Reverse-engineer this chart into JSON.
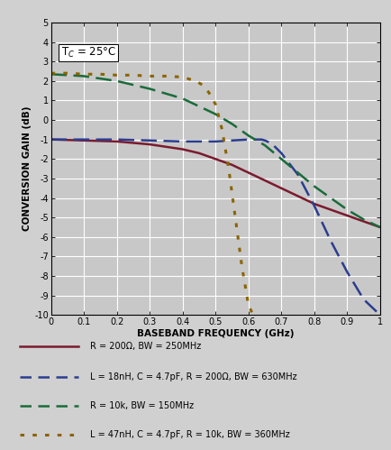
{
  "xlabel": "BASEBAND FREQUENCY (GHz)",
  "ylabel": "CONVERSION GAIN (dB)",
  "xlim": [
    0,
    1.0
  ],
  "ylim": [
    -10,
    5
  ],
  "xticks": [
    0,
    0.1,
    0.2,
    0.3,
    0.4,
    0.5,
    0.6,
    0.7,
    0.8,
    0.9,
    1.0
  ],
  "yticks": [
    -10,
    -9,
    -8,
    -7,
    -6,
    -5,
    -4,
    -3,
    -2,
    -1,
    0,
    1,
    2,
    3,
    4,
    5
  ],
  "fig_bg_color": "#c8c8c8",
  "plot_bg_color": "#c8c8c8",
  "grid_color": "#ffffff",
  "annotation_text": "T$_C$ = 25°C",
  "curves": {
    "red_solid": {
      "color": "#7b1a2e",
      "linewidth": 1.8,
      "x": [
        0,
        0.1,
        0.2,
        0.3,
        0.4,
        0.45,
        0.5,
        0.55,
        0.6,
        0.65,
        0.7,
        0.75,
        0.8,
        0.85,
        0.9,
        0.95,
        1.0
      ],
      "y": [
        -1.0,
        -1.05,
        -1.1,
        -1.25,
        -1.5,
        -1.7,
        -2.0,
        -2.3,
        -2.7,
        -3.1,
        -3.5,
        -3.9,
        -4.3,
        -4.6,
        -4.9,
        -5.2,
        -5.5
      ],
      "label": "R = 200Ω, BW = 250MHz"
    },
    "blue_dashed": {
      "color": "#2b3d8f",
      "linewidth": 1.8,
      "x": [
        0,
        0.1,
        0.2,
        0.3,
        0.4,
        0.5,
        0.55,
        0.6,
        0.62,
        0.64,
        0.65,
        0.67,
        0.7,
        0.75,
        0.8,
        0.85,
        0.9,
        0.95,
        1.0
      ],
      "y": [
        -1.0,
        -1.0,
        -1.0,
        -1.05,
        -1.1,
        -1.1,
        -1.05,
        -1.0,
        -1.0,
        -1.0,
        -1.05,
        -1.2,
        -1.7,
        -2.8,
        -4.4,
        -6.2,
        -7.8,
        -9.2,
        -10.0
      ],
      "label": "L = 18nH, C = 4.7pF, R = 200Ω, BW = 630MHz"
    },
    "green_dashed": {
      "color": "#1a6b3a",
      "linewidth": 1.8,
      "x": [
        0,
        0.05,
        0.1,
        0.2,
        0.3,
        0.4,
        0.5,
        0.55,
        0.6,
        0.65,
        0.7,
        0.75,
        0.8,
        0.85,
        0.9,
        0.95,
        1.0
      ],
      "y": [
        2.35,
        2.3,
        2.25,
        2.0,
        1.6,
        1.1,
        0.3,
        -0.2,
        -0.8,
        -1.3,
        -2.0,
        -2.7,
        -3.4,
        -4.0,
        -4.6,
        -5.1,
        -5.5
      ],
      "label": "R = 10k, BW = 150MHz"
    },
    "orange_dotted": {
      "color": "#8B6400",
      "linewidth": 2.2,
      "x": [
        0,
        0.05,
        0.1,
        0.15,
        0.2,
        0.25,
        0.3,
        0.35,
        0.4,
        0.42,
        0.44,
        0.46,
        0.48,
        0.5,
        0.52,
        0.54,
        0.56,
        0.58,
        0.6,
        0.62
      ],
      "y": [
        2.4,
        2.4,
        2.35,
        2.35,
        2.3,
        2.3,
        2.25,
        2.25,
        2.2,
        2.1,
        2.0,
        1.8,
        1.4,
        0.8,
        -0.5,
        -2.5,
        -5.0,
        -7.5,
        -9.5,
        -10.2
      ],
      "label": "L = 47nH, C = 4.7pF, R = 10k, BW = 360MHz"
    }
  },
  "legend_entries": [
    {
      "color": "#7b1a2e",
      "linestyle": "solid",
      "linewidth": 1.8,
      "label": "R = 200Ω, BW = 250MHz"
    },
    {
      "color": "#2b3d8f",
      "linestyle": "dashed",
      "linewidth": 1.8,
      "label": "L = 18nH, C = 4.7pF, R = 200Ω, BW = 630MHz"
    },
    {
      "color": "#1a6b3a",
      "linestyle": "dashed",
      "linewidth": 1.8,
      "label": "R = 10k, BW = 150MHz"
    },
    {
      "color": "#8B6400",
      "linestyle": "dotted",
      "linewidth": 2.2,
      "label": "L = 47nH, C = 4.7pF, R = 10k, BW = 360MHz"
    }
  ]
}
